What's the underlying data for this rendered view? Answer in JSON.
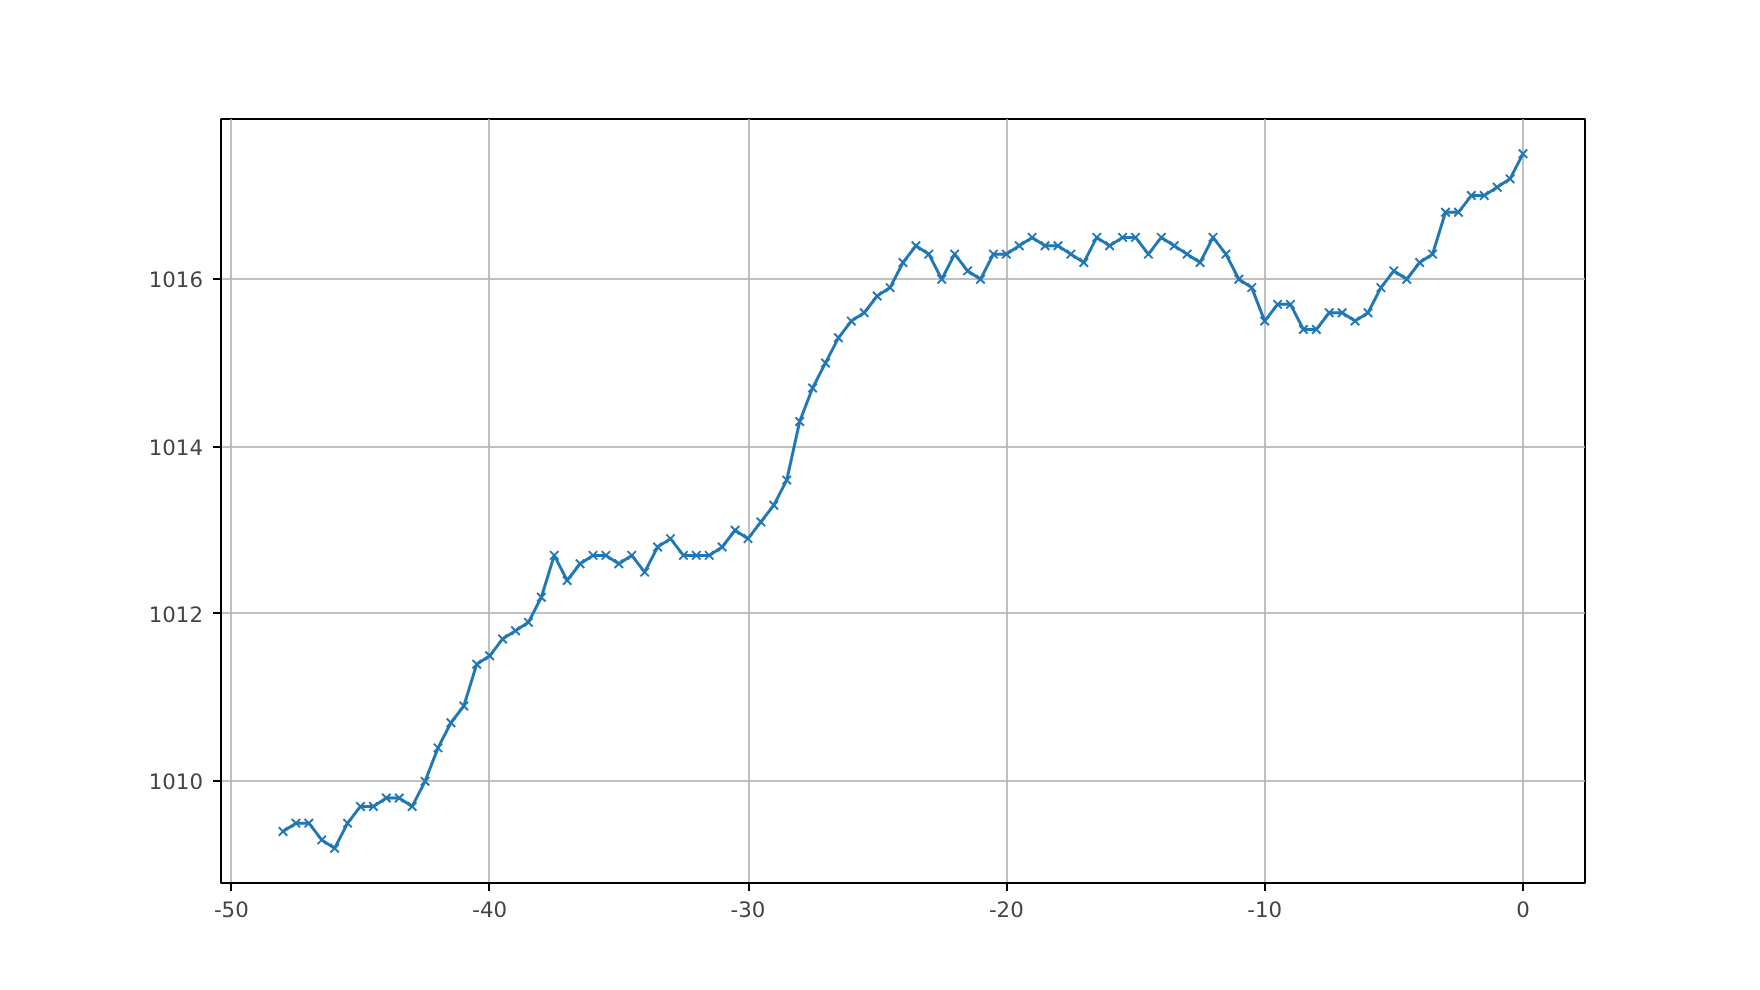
{
  "chart_data": {
    "type": "line",
    "x": [
      -48,
      -47.5,
      -47,
      -46.5,
      -46,
      -45.5,
      -45,
      -44.5,
      -44,
      -43.5,
      -43,
      -42.5,
      -42,
      -41.5,
      -41,
      -40.5,
      -40,
      -39.5,
      -39,
      -38.5,
      -38,
      -37.5,
      -37,
      -36.5,
      -36,
      -35.5,
      -35,
      -34.5,
      -34,
      -33.5,
      -33,
      -32.5,
      -32,
      -31.5,
      -31,
      -30.5,
      -30,
      -29.5,
      -29,
      -28.5,
      -28,
      -27.5,
      -27,
      -26.5,
      -26,
      -25.5,
      -25,
      -24.5,
      -24,
      -23.5,
      -23,
      -22.5,
      -22,
      -21.5,
      -21,
      -20.5,
      -20,
      -19.5,
      -19,
      -18.5,
      -18,
      -17.5,
      -17,
      -16.5,
      -16,
      -15.5,
      -15,
      -14.5,
      -14,
      -13.5,
      -13,
      -12.5,
      -12,
      -11.5,
      -11,
      -10.5,
      -10,
      -9.5,
      -9,
      -8.5,
      -8,
      -7.5,
      -7,
      -6.5,
      -6,
      -5.5,
      -5,
      -4.5,
      -4,
      -3.5,
      -3,
      -2.5,
      -2,
      -1.5,
      -1,
      -0.5,
      0
    ],
    "series": [
      {
        "color": "#1f77b4",
        "values": [
          1009.4,
          1009.5,
          1009.5,
          1009.3,
          1009.2,
          1009.5,
          1009.7,
          1009.7,
          1009.8,
          1009.8,
          1009.7,
          1010.0,
          1010.4,
          1010.7,
          1010.9,
          1011.4,
          1011.5,
          1011.7,
          1011.8,
          1011.9,
          1012.2,
          1012.7,
          1012.4,
          1012.6,
          1012.7,
          1012.7,
          1012.6,
          1012.7,
          1012.5,
          1012.8,
          1012.9,
          1012.7,
          1012.7,
          1012.7,
          1012.8,
          1013.0,
          1012.9,
          1013.1,
          1013.3,
          1013.6,
          1014.3,
          1014.7,
          1015.0,
          1015.3,
          1015.5,
          1015.6,
          1015.8,
          1015.9,
          1016.2,
          1016.4,
          1016.3,
          1016.0,
          1016.3,
          1016.1,
          1016.0,
          1016.3,
          1016.3,
          1016.4,
          1016.5,
          1016.4,
          1016.4,
          1016.3,
          1016.2,
          1016.5,
          1016.4,
          1016.5,
          1016.5,
          1016.3,
          1016.5,
          1016.4,
          1016.3,
          1016.2,
          1016.5,
          1016.3,
          1016.0,
          1015.9,
          1015.5,
          1015.7,
          1015.7,
          1015.4,
          1015.4,
          1015.6,
          1015.6,
          1015.5,
          1015.6,
          1015.9,
          1016.1,
          1016.0,
          1016.2,
          1016.3,
          1016.8,
          1016.8,
          1017.0,
          1017.0,
          1017.1,
          1017.2,
          1017.5
        ]
      }
    ],
    "xlim": [
      -50.4,
      2.4
    ],
    "ylim": [
      1008.785,
      1017.915
    ],
    "xticks": [
      -50,
      -40,
      -30,
      -20,
      -10,
      0
    ],
    "yticks": [
      1010,
      1012,
      1014,
      1016
    ],
    "grid": true,
    "marker": "cross",
    "line_style": "solid"
  }
}
